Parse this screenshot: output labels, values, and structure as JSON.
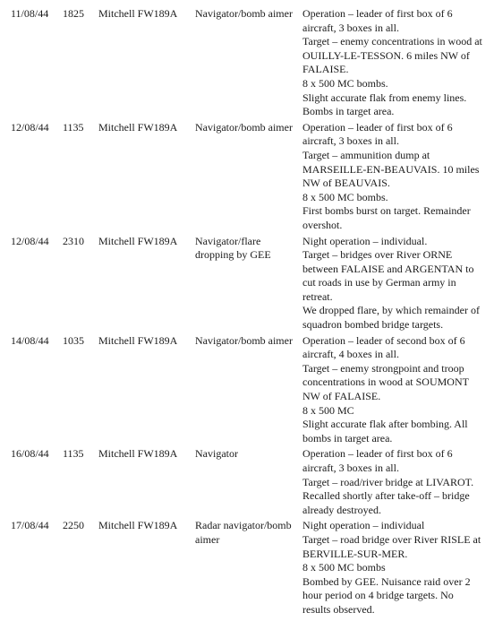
{
  "entries": [
    {
      "date": "11/08/44",
      "time": "1825",
      "aircraft": "Mitchell FW189A",
      "role": "Navigator/bomb aimer",
      "lines": [
        "Operation – leader of first box of 6 aircraft, 3 boxes in all.",
        "Target – enemy concentrations in wood at OUILLY-LE-TESSON. 6 miles NW of FALAISE.",
        "8 x 500 MC bombs.",
        "Slight accurate flak from enemy lines. Bombs in target area."
      ]
    },
    {
      "date": "12/08/44",
      "time": "1135",
      "aircraft": "Mitchell FW189A",
      "role": "Navigator/bomb aimer",
      "lines": [
        "Operation – leader of first box of 6 aircraft, 3 boxes in all.",
        "Target – ammunition dump at MARSEILLE-EN-BEAUVAIS. 10 miles NW of BEAUVAIS.",
        "8 x 500 MC bombs.",
        "First bombs burst on target. Remainder overshot."
      ]
    },
    {
      "date": "12/08/44",
      "time": "2310",
      "aircraft": "Mitchell FW189A",
      "role": "Navigator/flare dropping by GEE",
      "lines": [
        "Night operation – individual.",
        "Target – bridges over River ORNE between FALAISE and ARGENTAN to cut roads in use by German army in retreat.",
        "We dropped flare, by which remainder of squadron bombed bridge targets."
      ]
    },
    {
      "date": "14/08/44",
      "time": "1035",
      "aircraft": "Mitchell FW189A",
      "role": "Navigator/bomb aimer",
      "lines": [
        "Operation – leader of second box of 6 aircraft, 4 boxes in all.",
        "Target – enemy strongpoint and troop concentrations in wood at SOUMONT NW of FALAISE.",
        "8 x 500 MC",
        "Slight accurate flak after bombing. All bombs in target area."
      ]
    },
    {
      "date": "16/08/44",
      "time": "1135",
      "aircraft": "Mitchell FW189A",
      "role": "Navigator",
      "lines": [
        "Operation – leader of first box of 6 aircraft, 3 boxes in all.",
        "Target – road/river bridge at LIVAROT. Recalled shortly after take-off – bridge already destroyed."
      ]
    },
    {
      "date": "17/08/44",
      "time": "2250",
      "aircraft": "Mitchell FW189A",
      "role": "Radar navigator/bomb aimer",
      "lines": [
        "Night operation – individual",
        "Target – road bridge over River RISLE at BERVILLE-SUR-MER.",
        "8 x 500 MC bombs",
        "Bombed by GEE. Nuisance raid over 2 hour period on 4 bridge targets. No results observed."
      ]
    }
  ]
}
